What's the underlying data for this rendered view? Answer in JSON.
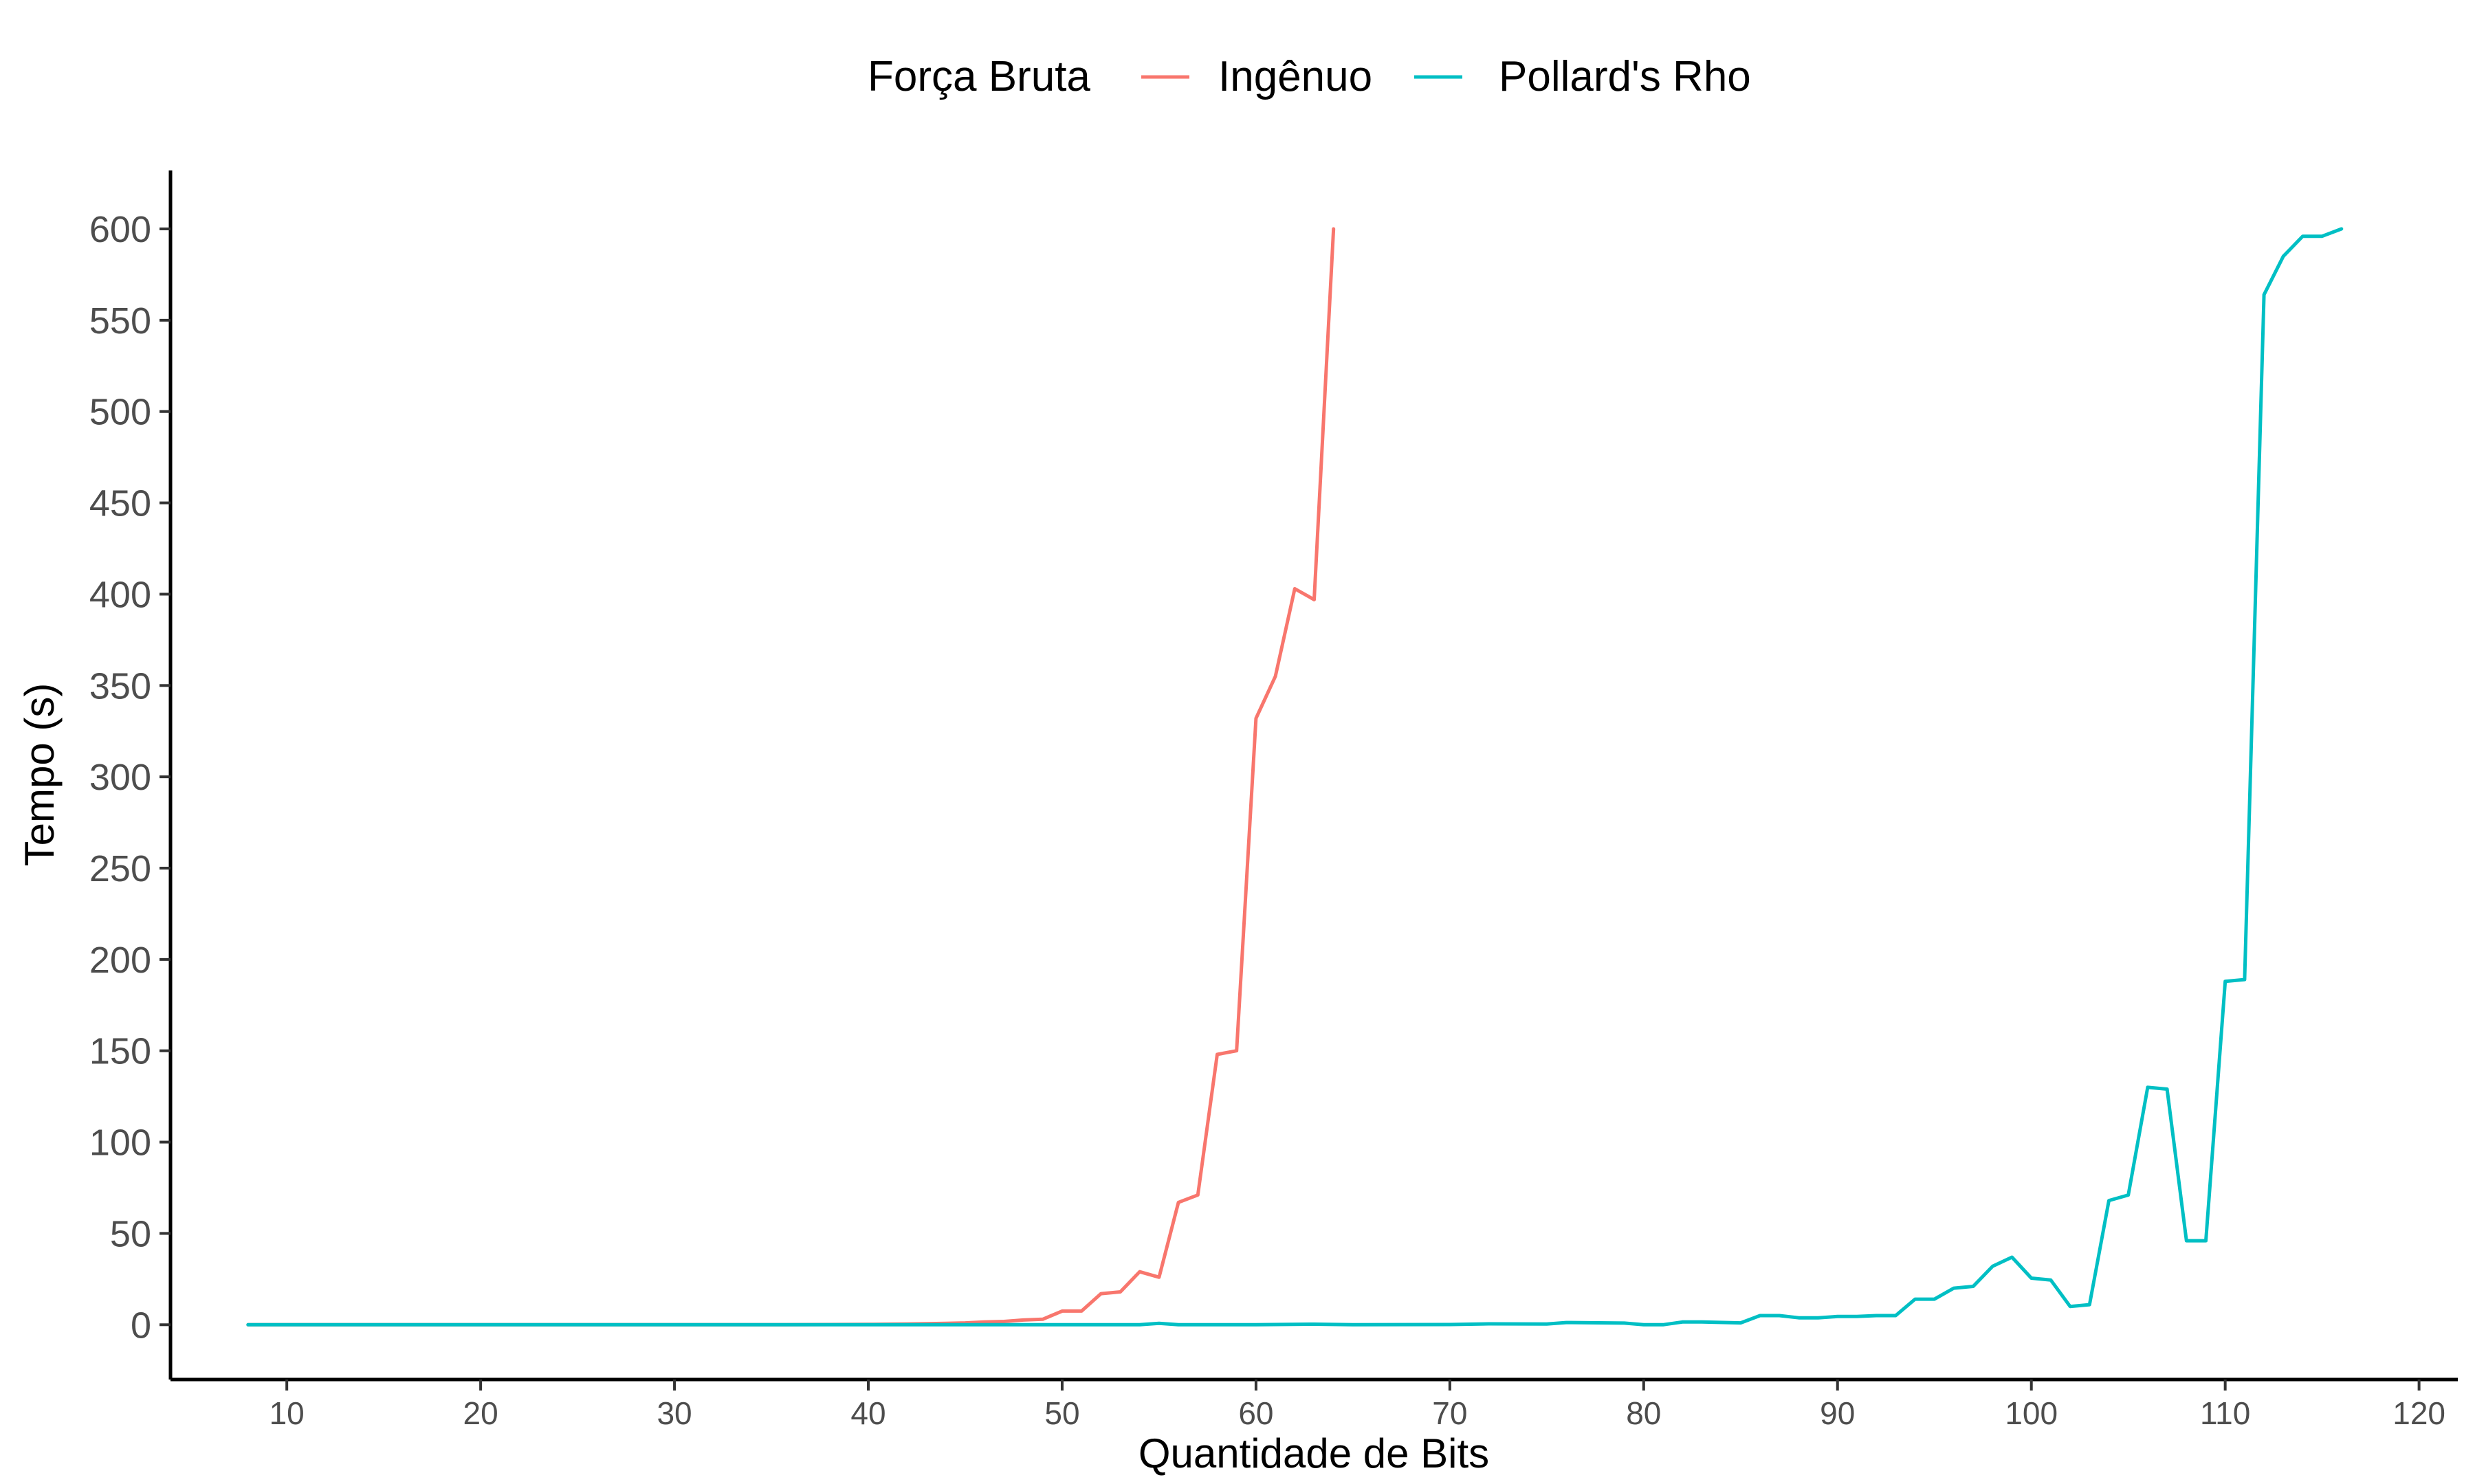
{
  "chart_data": {
    "type": "line",
    "title": "",
    "xlabel": "Quantidade de Bits",
    "ylabel": "Tempo (s)",
    "xlim": [
      4,
      122
    ],
    "ylim": [
      -30,
      632
    ],
    "xticks": [
      10,
      20,
      30,
      40,
      50,
      60,
      70,
      80,
      90,
      100,
      110,
      120
    ],
    "yticks": [
      0,
      50,
      100,
      150,
      200,
      250,
      300,
      350,
      400,
      450,
      500,
      550,
      600
    ],
    "grid": false,
    "legend": {
      "title": "Força Bruta",
      "placement": "top",
      "entries": [
        "Ingênuo",
        "Pollard's Rho"
      ]
    },
    "series": [
      {
        "name": "Ingênuo",
        "color": "#F8766D",
        "points": [
          [
            8,
            0
          ],
          [
            10,
            0
          ],
          [
            15,
            0
          ],
          [
            20,
            0
          ],
          [
            25,
            0
          ],
          [
            30,
            0
          ],
          [
            35,
            0
          ],
          [
            38,
            0.1
          ],
          [
            40,
            0.2
          ],
          [
            42,
            0.4
          ],
          [
            43,
            0.6
          ],
          [
            44,
            0.8
          ],
          [
            45,
            1.0
          ],
          [
            46,
            1.5
          ],
          [
            47,
            1.8
          ],
          [
            48,
            2.6
          ],
          [
            49,
            3.0
          ],
          [
            50,
            7.5
          ],
          [
            51,
            7.5
          ],
          [
            52,
            17
          ],
          [
            53,
            18
          ],
          [
            54,
            29
          ],
          [
            55,
            26
          ],
          [
            56,
            67
          ],
          [
            57,
            71
          ],
          [
            58,
            148
          ],
          [
            59,
            150
          ],
          [
            60,
            332
          ],
          [
            61,
            355
          ],
          [
            62,
            403
          ],
          [
            63,
            397
          ],
          [
            64,
            600
          ]
        ]
      },
      {
        "name": "Pollard's Rho",
        "color": "#00BFC4",
        "points": [
          [
            8,
            0
          ],
          [
            10,
            0
          ],
          [
            20,
            0
          ],
          [
            30,
            0
          ],
          [
            40,
            0
          ],
          [
            50,
            0
          ],
          [
            54,
            0
          ],
          [
            55,
            0.8
          ],
          [
            56,
            0
          ],
          [
            60,
            0
          ],
          [
            63,
            0.3
          ],
          [
            65,
            0
          ],
          [
            70,
            0.1
          ],
          [
            72,
            0.5
          ],
          [
            75,
            0.4
          ],
          [
            76,
            1.2
          ],
          [
            79,
            0.9
          ],
          [
            80,
            0
          ],
          [
            81,
            0
          ],
          [
            82,
            1.5
          ],
          [
            83,
            1.5
          ],
          [
            85,
            1.0
          ],
          [
            86,
            5
          ],
          [
            87,
            5
          ],
          [
            88,
            3.8
          ],
          [
            89,
            3.8
          ],
          [
            90,
            4.5
          ],
          [
            91,
            4.5
          ],
          [
            92,
            5
          ],
          [
            93,
            5
          ],
          [
            94,
            14
          ],
          [
            95,
            14
          ],
          [
            96,
            20
          ],
          [
            97,
            21
          ],
          [
            98,
            32
          ],
          [
            99,
            37
          ],
          [
            100,
            25.5
          ],
          [
            101,
            24.5
          ],
          [
            102,
            10
          ],
          [
            103,
            11
          ],
          [
            104,
            68
          ],
          [
            105,
            71
          ],
          [
            106,
            130
          ],
          [
            107,
            129
          ],
          [
            108,
            46
          ],
          [
            109,
            46
          ],
          [
            110,
            188
          ],
          [
            111,
            189
          ],
          [
            112,
            564
          ],
          [
            113,
            585
          ],
          [
            114,
            596
          ],
          [
            115,
            596
          ],
          [
            116,
            600
          ]
        ]
      }
    ]
  }
}
